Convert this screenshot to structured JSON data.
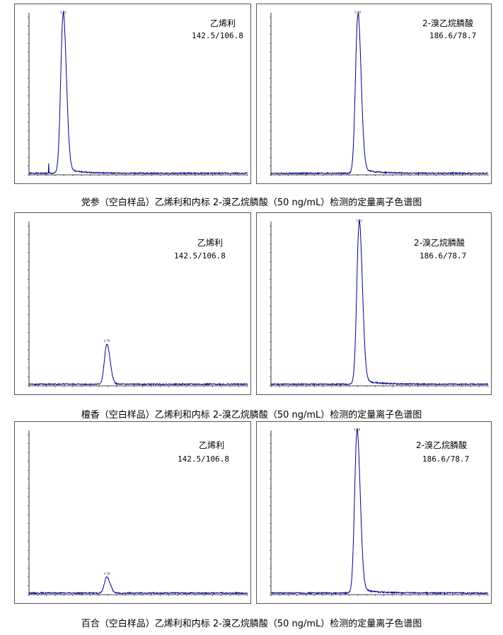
{
  "rows": [
    {
      "caption": "党参（空白样品）乙烯利和内标 2-溴乙烷膦酸（50 ng/mL）检测的定量离子色谱图",
      "panels": [
        {
          "compound": "乙烯利",
          "transition": "142.5/106.8",
          "chart_data": {
            "type": "line",
            "x_range": [
              3.0,
              8.0
            ],
            "peak_rt": 3.78,
            "peak_label": "3.78",
            "relative_max": 1.0,
            "baseline": 0.01,
            "spike_rt": 3.45,
            "spike_height": 0.06
          }
        },
        {
          "compound": "2-溴乙烷膦酸",
          "transition": "186.6/78.7",
          "chart_data": {
            "type": "line",
            "x_range": [
              3.0,
              8.0
            ],
            "peak_rt": 5.0,
            "peak_label": "5.00",
            "relative_max": 1.0,
            "baseline": 0.01
          }
        }
      ]
    },
    {
      "caption": "檀香（空白样品）乙烯利和内标 2-溴乙烷膦酸（50 ng/mL）检测的定量离子色谱图",
      "panels": [
        {
          "compound": "乙烯利",
          "transition": "142.5/106.8",
          "chart_data": {
            "type": "line",
            "x_range": [
              3.0,
              8.0
            ],
            "peak_rt": 4.78,
            "peak_label": "4.78",
            "relative_max": 0.25,
            "baseline": 0.01
          }
        },
        {
          "compound": "2-溴乙烷膦酸",
          "transition": "186.6/78.7",
          "chart_data": {
            "type": "line",
            "x_range": [
              3.0,
              8.0
            ],
            "peak_rt": 5.03,
            "peak_label": "5.03",
            "relative_max": 1.0,
            "baseline": 0.01
          }
        }
      ]
    },
    {
      "caption": "百合（空白样品）乙烯利和内标 2-溴乙烷膦酸（50 ng/mL）检测的定量离子色谱图",
      "panels": [
        {
          "compound": "乙烯利",
          "transition": "142.5/106.8",
          "chart_data": {
            "type": "line",
            "x_range": [
              3.0,
              8.0
            ],
            "peak_rt": 4.78,
            "peak_label": "4.78",
            "relative_max": 0.1,
            "baseline": 0.01
          }
        },
        {
          "compound": "2-溴乙烷膦酸",
          "transition": "186.6/78.7",
          "chart_data": {
            "type": "line",
            "x_range": [
              3.0,
              8.0
            ],
            "peak_rt": 4.98,
            "peak_label": "4.98",
            "relative_max": 1.0,
            "baseline": 0.01
          }
        }
      ]
    }
  ]
}
